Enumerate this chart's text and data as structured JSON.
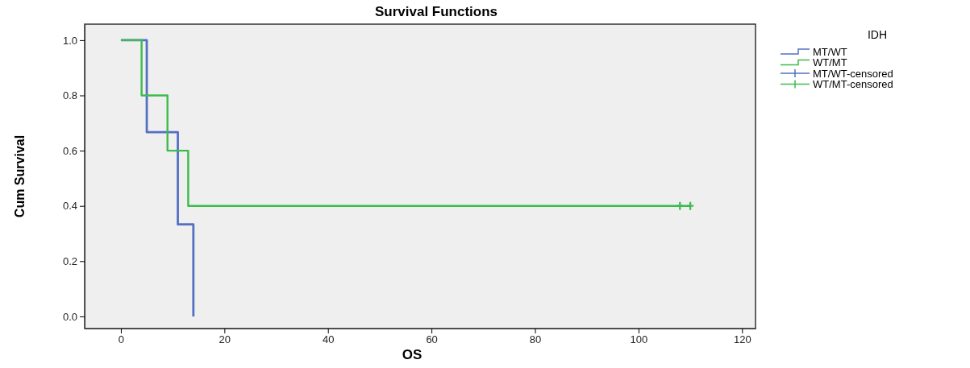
{
  "chart_data": {
    "type": "step",
    "title": "Survival Functions",
    "xlabel": "OS",
    "ylabel": "Cum Survival",
    "legend_title": "IDH",
    "legend": "top right",
    "grid": false,
    "xlim": [
      -7,
      122.6
    ],
    "xticks": [
      0,
      20,
      40,
      60,
      80,
      100,
      120
    ],
    "ylim": [
      -0.044,
      1.058
    ],
    "yticks": [
      {
        "value": 0,
        "label": "0.0"
      },
      {
        "value": 0.2,
        "label": "0.2"
      },
      {
        "value": 0.4,
        "label": "0.4"
      },
      {
        "value": 0.6,
        "label": "0.6"
      },
      {
        "value": 0.8,
        "label": "0.8"
      },
      {
        "value": 1,
        "label": "1.0"
      }
    ],
    "series": [
      {
        "name": "MT/WT",
        "color": "#5470c4",
        "x": [
          0,
          5,
          11,
          14
        ],
        "values": [
          1,
          0.667,
          0.333,
          0
        ]
      },
      {
        "name": "WT/MT",
        "color": "#3cbc4c",
        "x": [
          0,
          4,
          9,
          13,
          110
        ],
        "values": [
          1,
          0.8,
          0.6,
          0.4,
          0.4
        ]
      },
      {
        "name": "MT/WT-censored",
        "type": "scatter",
        "marker": "cross",
        "color": "#5470c4"
      },
      {
        "name": "WT/MT-censored",
        "type": "scatter",
        "marker": "cross",
        "color": "#3cbc4c",
        "x": [
          108,
          110
        ],
        "values": [
          0.4,
          0.4
        ]
      }
    ]
  }
}
